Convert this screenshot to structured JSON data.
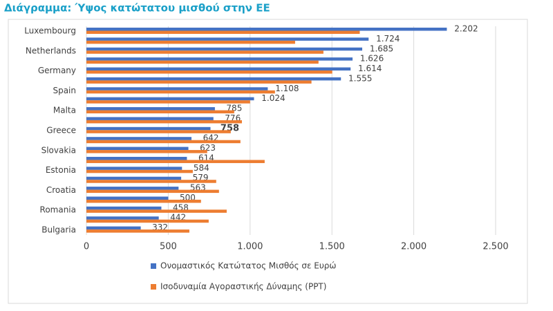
{
  "chart_data": {
    "type": "hbar",
    "title": "Διάγραμμα: Ύψος κατώτατου μισθού στην ΕΕ",
    "categories": [
      "Luxembourg",
      null,
      "Netherlands",
      null,
      "Germany",
      null,
      "Spain",
      null,
      "Malta",
      null,
      "Greece",
      null,
      "Slovakia",
      null,
      "Estonia",
      null,
      "Croatia",
      null,
      "Romania",
      null,
      "Bulgaria"
    ],
    "series": [
      {
        "name": "Ονομαστικός Κατώτατος Μισθός σε Ευρώ",
        "color": "#4472c4",
        "values": [
          2202,
          1724,
          1685,
          1626,
          1614,
          1555,
          1108,
          1024,
          785,
          776,
          758,
          642,
          623,
          614,
          584,
          579,
          563,
          500,
          458,
          442,
          332
        ],
        "value_labels": [
          "2.202",
          "1.724",
          "1.685",
          "1.626",
          "1.614",
          "1.555",
          "1.108",
          "1.024",
          "785",
          "776",
          "758",
          "642",
          "623",
          "614",
          "584",
          "579",
          "563",
          "500",
          "458",
          "442",
          "332"
        ]
      },
      {
        "name": "Ισοδυναμία Αγοραστικής Δύναμης (PPT)",
        "color": "#ed7d31",
        "values": [
          1670,
          1275,
          1448,
          1418,
          1502,
          1375,
          1152,
          1000,
          903,
          950,
          882,
          941,
          738,
          1089,
          650,
          793,
          810,
          700,
          857,
          747,
          629
        ]
      }
    ],
    "xlim": [
      0,
      2500
    ],
    "xticks": [
      0,
      500,
      {
        "value": 1000,
        "label": "1.000"
      },
      {
        "value": 1500,
        "label": "1.500"
      },
      {
        "value": 2000,
        "label": "2.000"
      },
      {
        "value": 2500,
        "label": "2.500"
      }
    ],
    "grid": true
  }
}
